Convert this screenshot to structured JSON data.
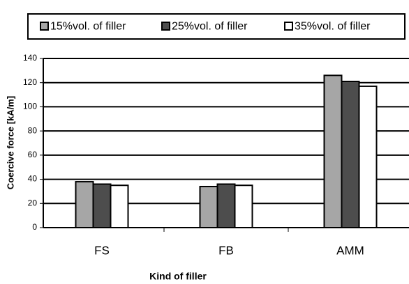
{
  "chart_data": {
    "type": "bar",
    "xlabel": "Kind of filler",
    "ylabel": "Coercive force [kA/m]",
    "categories": [
      "FS",
      "FB",
      "AMM"
    ],
    "series": [
      {
        "name": "15%vol. of filler",
        "color": "#a6a6a6",
        "values": [
          38,
          34,
          126
        ]
      },
      {
        "name": "25%vol. of filler",
        "color": "#4d4d4d",
        "values": [
          36,
          36,
          121
        ]
      },
      {
        "name": "35%vol. of filler",
        "color": "#ffffff",
        "values": [
          35,
          35,
          117
        ]
      }
    ],
    "ylim": [
      0,
      140
    ],
    "yticks": [
      0,
      20,
      40,
      60,
      80,
      100,
      120,
      140
    ],
    "grid": true,
    "legend": "top"
  }
}
